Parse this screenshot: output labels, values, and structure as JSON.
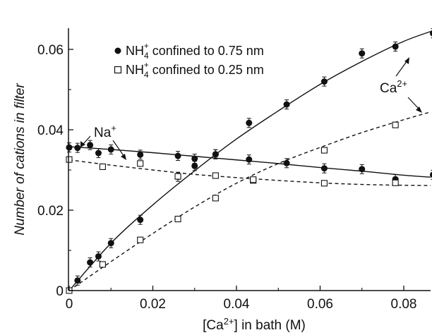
{
  "chart_data": {
    "type": "scatter",
    "title": "",
    "xlabel": "[Ca2+] in bath (M)",
    "ylabel": "Number of cations in filter",
    "xlim": [
      -0.001,
      0.09
    ],
    "ylim": [
      0,
      0.068
    ],
    "xticks": [
      0,
      0.02,
      0.04,
      0.06,
      0.08
    ],
    "xtick_labels": [
      "0",
      "0.02",
      "0.04",
      "0.06",
      "0.08"
    ],
    "yticks": [
      0,
      0.02,
      0.04,
      0.06
    ],
    "ytick_labels": [
      "0",
      "0.02",
      "0.04",
      "0.06"
    ],
    "grid": false,
    "legend_position": "top-left",
    "series": [
      {
        "name": "NH4+ confined to 0.75 nm",
        "species": "Na+",
        "marker": "filled-circle",
        "x": [
          0,
          0.002,
          0.005,
          0.007,
          0.01,
          0.017,
          0.026,
          0.03,
          0.035,
          0.043,
          0.052,
          0.061,
          0.07,
          0.078,
          0.087
        ],
        "y": [
          0.0356,
          0.0355,
          0.0362,
          0.0342,
          0.0351,
          0.0338,
          0.0335,
          0.0328,
          0.0339,
          0.0326,
          0.0317,
          0.0304,
          0.0302,
          0.0277,
          0.0288
        ]
      },
      {
        "name": "NH4+ confined to 0.75 nm",
        "species": "Ca2+",
        "marker": "filled-circle",
        "x": [
          0,
          0.002,
          0.005,
          0.007,
          0.01,
          0.017,
          0.026,
          0.03,
          0.035,
          0.043,
          0.052,
          0.061,
          0.07,
          0.078,
          0.087
        ],
        "y": [
          0,
          0.0025,
          0.007,
          0.0085,
          0.0118,
          0.0176,
          0.0283,
          0.031,
          0.0339,
          0.0417,
          0.0463,
          0.052,
          0.059,
          0.0607,
          0.064
        ]
      },
      {
        "name": "NH4+ confined to 0.25 nm",
        "species": "Na+",
        "marker": "open-square",
        "x": [
          0,
          0.008,
          0.017,
          0.026,
          0.035,
          0.044,
          0.061,
          0.078
        ],
        "y": [
          0.0326,
          0.0308,
          0.0316,
          0.0284,
          0.0286,
          0.0274,
          0.0267,
          0.0268
        ]
      },
      {
        "name": "NH4+ confined to 0.25 nm",
        "species": "Ca2+",
        "marker": "open-square",
        "x": [
          0,
          0.008,
          0.017,
          0.026,
          0.035,
          0.044,
          0.061,
          0.078
        ],
        "y": [
          0,
          0.0065,
          0.0126,
          0.0178,
          0.023,
          0.0276,
          0.0349,
          0.0412
        ]
      }
    ],
    "fit_curves": [
      {
        "style": "solid",
        "x": [
          0,
          0.01,
          0.02,
          0.03,
          0.04,
          0.05,
          0.06,
          0.07,
          0.08,
          0.088
        ],
        "y": [
          0.0358,
          0.0351,
          0.0343,
          0.0334,
          0.0325,
          0.0316,
          0.0306,
          0.0297,
          0.0287,
          0.0281
        ]
      },
      {
        "style": "solid",
        "x": [
          0,
          0.01,
          0.02,
          0.03,
          0.04,
          0.05,
          0.06,
          0.07,
          0.08,
          0.088
        ],
        "y": [
          0,
          0.0118,
          0.0213,
          0.0298,
          0.0377,
          0.0447,
          0.0513,
          0.057,
          0.062,
          0.065
        ]
      },
      {
        "style": "dashed",
        "x": [
          0,
          0.01,
          0.02,
          0.03,
          0.04,
          0.05,
          0.06,
          0.07,
          0.08,
          0.09
        ],
        "y": [
          0.0325,
          0.0312,
          0.03,
          0.0289,
          0.0281,
          0.0274,
          0.0268,
          0.0264,
          0.0262,
          0.0261
        ]
      },
      {
        "style": "dashed",
        "x": [
          0,
          0.01,
          0.02,
          0.03,
          0.04,
          0.05,
          0.06,
          0.07,
          0.08,
          0.09
        ],
        "y": [
          0,
          0.0072,
          0.0142,
          0.0208,
          0.0267,
          0.0316,
          0.0356,
          0.0393,
          0.0425,
          0.0455
        ]
      }
    ],
    "legend": [
      {
        "marker": "filled-circle",
        "prefix": "NH",
        "sub": "4",
        "sup": "+",
        "suffix": " confined to 0.75 nm"
      },
      {
        "marker": "open-square",
        "prefix": "NH",
        "sub": "4",
        "sup": "+",
        "suffix": " confined to 0.25 nm"
      }
    ],
    "annotations": {
      "na": {
        "base": "Na",
        "sup": "+"
      },
      "ca": {
        "base": "Ca",
        "sup": "2+"
      }
    },
    "xlabel_parts": {
      "pre": "[Ca",
      "sup": "2+",
      "post": "] in bath (M)"
    },
    "colors": {
      "ink": "#111111"
    }
  }
}
